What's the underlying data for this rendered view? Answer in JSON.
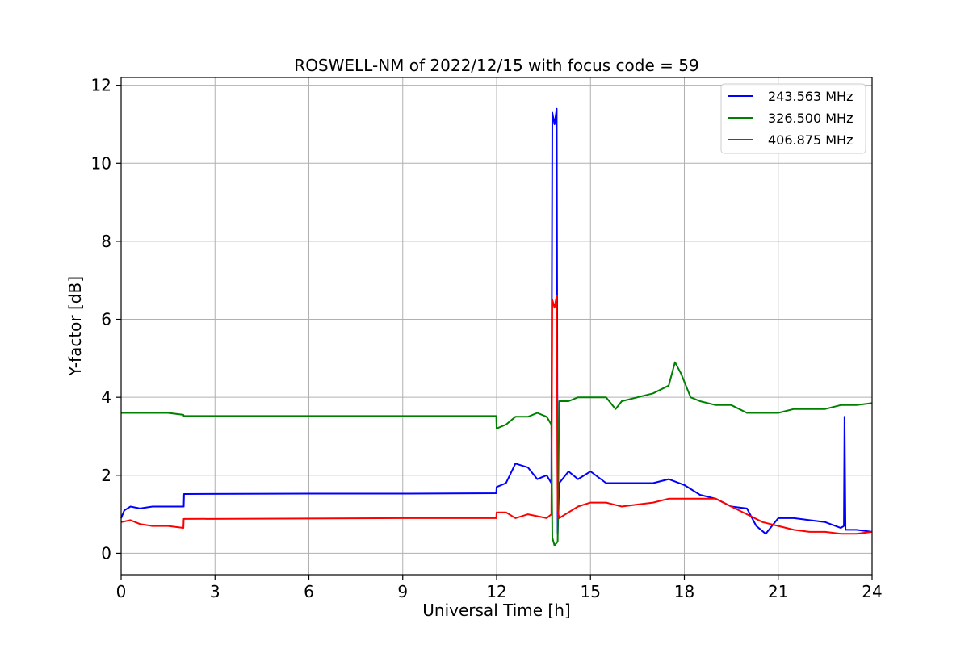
{
  "chart_data": {
    "type": "line",
    "title": "ROSWELL-NM of 2022/12/15 with focus code = 59",
    "xlabel": "Universal Time [h]",
    "ylabel": "Y-factor [dB]",
    "xlim": [
      0,
      24
    ],
    "ylim": [
      -0.55,
      12.2
    ],
    "xticks": [
      0,
      3,
      6,
      9,
      12,
      15,
      18,
      21,
      24
    ],
    "yticks": [
      0,
      2,
      4,
      6,
      8,
      10,
      12
    ],
    "grid": true,
    "legend_position": "top-right",
    "series": [
      {
        "name": "243.563 MHz",
        "color": "#0000ff",
        "points": [
          [
            0,
            0.9
          ],
          [
            0.1,
            1.1
          ],
          [
            0.3,
            1.2
          ],
          [
            0.6,
            1.15
          ],
          [
            1,
            1.2
          ],
          [
            1.5,
            1.2
          ],
          [
            2,
            1.2
          ],
          [
            2.01,
            1.52
          ],
          [
            6,
            1.53
          ],
          [
            9,
            1.53
          ],
          [
            11.99,
            1.54
          ],
          [
            12,
            1.7
          ],
          [
            12.3,
            1.8
          ],
          [
            12.6,
            2.3
          ],
          [
            13,
            2.2
          ],
          [
            13.3,
            1.9
          ],
          [
            13.6,
            2.0
          ],
          [
            13.75,
            1.8
          ],
          [
            13.78,
            11.3
          ],
          [
            13.85,
            11.0
          ],
          [
            13.92,
            11.4
          ],
          [
            13.95,
            0.5
          ],
          [
            14.0,
            1.8
          ],
          [
            14.3,
            2.1
          ],
          [
            14.6,
            1.9
          ],
          [
            15,
            2.1
          ],
          [
            15.5,
            1.8
          ],
          [
            16,
            1.8
          ],
          [
            16.5,
            1.8
          ],
          [
            17,
            1.8
          ],
          [
            17.5,
            1.9
          ],
          [
            18,
            1.75
          ],
          [
            18.5,
            1.5
          ],
          [
            19,
            1.4
          ],
          [
            19.5,
            1.2
          ],
          [
            20,
            1.15
          ],
          [
            20.3,
            0.7
          ],
          [
            20.6,
            0.5
          ],
          [
            21,
            0.9
          ],
          [
            21.5,
            0.9
          ],
          [
            22,
            0.85
          ],
          [
            22.5,
            0.8
          ],
          [
            23,
            0.65
          ],
          [
            23.1,
            0.7
          ],
          [
            23.12,
            3.5
          ],
          [
            23.15,
            0.6
          ],
          [
            23.5,
            0.6
          ],
          [
            24,
            0.55
          ]
        ]
      },
      {
        "name": "326.500 MHz",
        "color": "#008000",
        "points": [
          [
            0,
            3.6
          ],
          [
            0.5,
            3.6
          ],
          [
            1,
            3.6
          ],
          [
            1.5,
            3.6
          ],
          [
            1.99,
            3.55
          ],
          [
            2,
            3.52
          ],
          [
            6,
            3.52
          ],
          [
            9,
            3.52
          ],
          [
            11.99,
            3.52
          ],
          [
            12,
            3.2
          ],
          [
            12.3,
            3.3
          ],
          [
            12.6,
            3.5
          ],
          [
            13,
            3.5
          ],
          [
            13.3,
            3.6
          ],
          [
            13.6,
            3.5
          ],
          [
            13.75,
            3.3
          ],
          [
            13.78,
            0.4
          ],
          [
            13.85,
            0.2
          ],
          [
            13.95,
            0.3
          ],
          [
            14.0,
            3.9
          ],
          [
            14.3,
            3.9
          ],
          [
            14.6,
            4.0
          ],
          [
            15,
            4.0
          ],
          [
            15.5,
            4.0
          ],
          [
            15.8,
            3.7
          ],
          [
            16,
            3.9
          ],
          [
            16.5,
            4.0
          ],
          [
            17,
            4.1
          ],
          [
            17.5,
            4.3
          ],
          [
            17.7,
            4.9
          ],
          [
            17.9,
            4.6
          ],
          [
            18.2,
            4.0
          ],
          [
            18.5,
            3.9
          ],
          [
            19,
            3.8
          ],
          [
            19.5,
            3.8
          ],
          [
            20,
            3.6
          ],
          [
            20.5,
            3.6
          ],
          [
            21,
            3.6
          ],
          [
            21.5,
            3.7
          ],
          [
            22,
            3.7
          ],
          [
            22.5,
            3.7
          ],
          [
            23,
            3.8
          ],
          [
            23.5,
            3.8
          ],
          [
            24,
            3.85
          ]
        ]
      },
      {
        "name": "406.875 MHz",
        "color": "#ff0000",
        "points": [
          [
            0,
            0.8
          ],
          [
            0.3,
            0.85
          ],
          [
            0.6,
            0.75
          ],
          [
            1,
            0.7
          ],
          [
            1.5,
            0.7
          ],
          [
            1.99,
            0.65
          ],
          [
            2,
            0.88
          ],
          [
            6,
            0.89
          ],
          [
            9,
            0.9
          ],
          [
            11.99,
            0.9
          ],
          [
            12,
            1.05
          ],
          [
            12.3,
            1.05
          ],
          [
            12.6,
            0.9
          ],
          [
            13,
            1.0
          ],
          [
            13.3,
            0.95
          ],
          [
            13.6,
            0.9
          ],
          [
            13.75,
            1.0
          ],
          [
            13.78,
            6.5
          ],
          [
            13.85,
            6.3
          ],
          [
            13.92,
            6.6
          ],
          [
            13.95,
            1.1
          ],
          [
            14.0,
            0.9
          ],
          [
            14.3,
            1.05
          ],
          [
            14.6,
            1.2
          ],
          [
            15,
            1.3
          ],
          [
            15.5,
            1.3
          ],
          [
            16,
            1.2
          ],
          [
            16.5,
            1.25
          ],
          [
            17,
            1.3
          ],
          [
            17.5,
            1.4
          ],
          [
            18,
            1.4
          ],
          [
            18.5,
            1.4
          ],
          [
            19,
            1.4
          ],
          [
            19.5,
            1.2
          ],
          [
            20,
            1.0
          ],
          [
            20.5,
            0.8
          ],
          [
            21,
            0.7
          ],
          [
            21.5,
            0.6
          ],
          [
            22,
            0.55
          ],
          [
            22.5,
            0.55
          ],
          [
            23,
            0.5
          ],
          [
            23.5,
            0.5
          ],
          [
            24,
            0.55
          ]
        ]
      }
    ]
  }
}
